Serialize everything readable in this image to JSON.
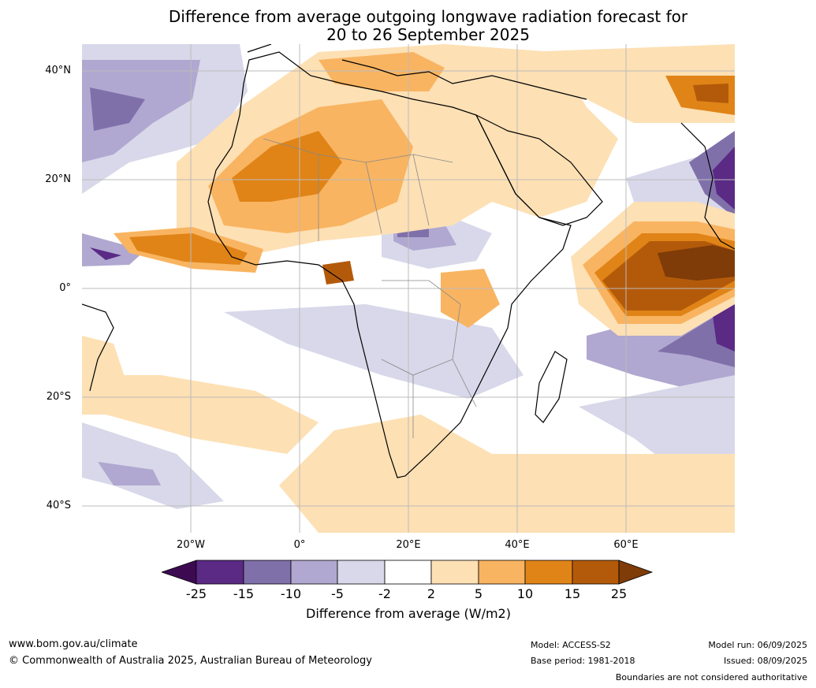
{
  "title": {
    "line1": "Difference from average outgoing longwave radiation forecast for",
    "line2": "20 to 26 September 2025"
  },
  "map": {
    "lat_ticks": [
      "40°N",
      "20°N",
      "0°",
      "20°S",
      "40°S"
    ],
    "lon_ticks": [
      "20°W",
      "0°",
      "20°E",
      "40°E",
      "60°E"
    ],
    "colors": {
      "neg25": "#3d0a52",
      "neg15": "#5a2a85",
      "neg10": "#8070aa",
      "neg5": "#b0a8d0",
      "neg2": "#d8d8ea",
      "zero": "#ffffff",
      "pos2": "#fde0b4",
      "pos5": "#f9b461",
      "pos10": "#e08418",
      "pos15": "#b35a0a",
      "pos25": "#7f3b08"
    }
  },
  "legend": {
    "ticks": [
      "-25",
      "-15",
      "-10",
      "-5",
      "-2",
      "2",
      "5",
      "10",
      "15",
      "25"
    ],
    "label": "Difference from average (W/m2)"
  },
  "footer": {
    "website": "www.bom.gov.au/climate",
    "copyright": "© Commonwealth of Australia 2025, Australian Bureau of Meteorology",
    "model": "Model: ACCESS-S2",
    "base_period": "Base period: 1981-2018",
    "model_run": "Model run: 06/09/2025",
    "issued": "Issued: 08/09/2025",
    "disclaimer": "Boundaries are not considered authoritative"
  }
}
